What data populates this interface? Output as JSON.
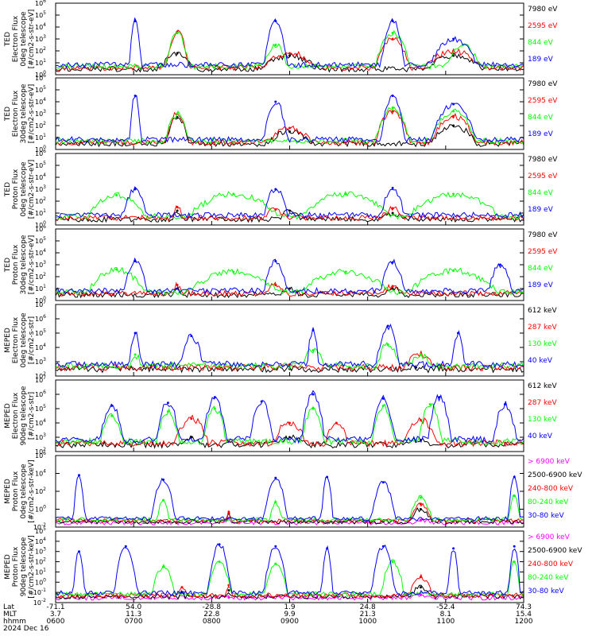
{
  "colors": {
    "black": "#000000",
    "red": "#ff0000",
    "green": "#00ff00",
    "blue": "#0000ff",
    "magenta": "#ff00ff"
  },
  "bottom_axis": {
    "row_labels": [
      "Lat",
      "MLT",
      "hhmm",
      "2024 Dec 16"
    ],
    "ticks": [
      {
        "lat": "-71.1",
        "mlt": "3.7",
        "hhmm": "0600"
      },
      {
        "lat": "54.0",
        "mlt": "11.3",
        "hhmm": "0700"
      },
      {
        "lat": "-28.8",
        "mlt": "22.8",
        "hhmm": "0800"
      },
      {
        "lat": "1.9",
        "mlt": "9.9",
        "hhmm": "0900"
      },
      {
        "lat": "24.8",
        "mlt": "21.3",
        "hhmm": "1000"
      },
      {
        "lat": "-52.4",
        "mlt": "8.1",
        "hhmm": "1100"
      },
      {
        "lat": "74.3",
        "mlt": "15.4",
        "hhmm": "1200"
      }
    ]
  },
  "chart_data": [
    {
      "type": "line",
      "ylabel_lines": [
        "TED",
        "Electron Flux",
        "0deg telescope",
        "[#/cm2-s-str-eV]"
      ],
      "yscale": "log",
      "y_exponents": [
        0,
        1,
        2,
        3,
        4,
        5,
        6
      ],
      "series": [
        {
          "name": "7980 eV",
          "color": "black",
          "peaks": [
            [
              0.26,
              1.8,
              0.03
            ],
            [
              0.5,
              1.6,
              0.05
            ],
            [
              0.85,
              1.6,
              0.05
            ]
          ]
        },
        {
          "name": "2595 eV",
          "color": "red",
          "peaks": [
            [
              0.26,
              3.6,
              0.02
            ],
            [
              0.5,
              1.8,
              0.05
            ],
            [
              0.72,
              3.0,
              0.03
            ],
            [
              0.85,
              2.0,
              0.05
            ]
          ]
        },
        {
          "name": "844 eV",
          "color": "green",
          "peaks": [
            [
              0.26,
              3.5,
              0.02
            ],
            [
              0.47,
              2.5,
              0.02
            ],
            [
              0.72,
              3.5,
              0.03
            ],
            [
              0.87,
              2.5,
              0.03
            ]
          ]
        },
        {
          "name": "189 eV",
          "color": "blue",
          "peaks": [
            [
              0.17,
              4.5,
              0.01
            ],
            [
              0.47,
              4.5,
              0.02
            ],
            [
              0.72,
              4.5,
              0.02
            ],
            [
              0.85,
              3.0,
              0.04
            ]
          ]
        }
      ]
    },
    {
      "type": "line",
      "ylabel_lines": [
        "TED",
        "Electron Flux",
        "30deg telescope",
        "[#/cm2-s-str-eV]"
      ],
      "yscale": "log",
      "y_exponents": [
        0,
        1,
        2,
        3,
        4,
        5,
        6
      ],
      "series": [
        {
          "name": "7980 eV",
          "color": "black",
          "peaks": [
            [
              0.26,
              2.7,
              0.02
            ],
            [
              0.5,
              1.5,
              0.04
            ],
            [
              0.85,
              2.0,
              0.04
            ]
          ]
        },
        {
          "name": "2595 eV",
          "color": "red",
          "peaks": [
            [
              0.26,
              3.0,
              0.02
            ],
            [
              0.5,
              1.8,
              0.04
            ],
            [
              0.72,
              3.2,
              0.03
            ],
            [
              0.85,
              2.8,
              0.04
            ]
          ]
        },
        {
          "name": "844 eV",
          "color": "green",
          "peaks": [
            [
              0.26,
              3.0,
              0.02
            ],
            [
              0.72,
              3.5,
              0.03
            ],
            [
              0.85,
              3.2,
              0.04
            ]
          ]
        },
        {
          "name": "189 eV",
          "color": "blue",
          "peaks": [
            [
              0.17,
              4.5,
              0.01
            ],
            [
              0.47,
              4.0,
              0.02
            ],
            [
              0.72,
              4.5,
              0.02
            ],
            [
              0.85,
              3.8,
              0.04
            ]
          ]
        }
      ]
    },
    {
      "type": "line",
      "ylabel_lines": [
        "TED",
        "Proton Flux",
        "0deg telescope",
        "[#/cm2-s-str-eV]"
      ],
      "yscale": "log",
      "y_exponents": [
        0,
        1,
        2,
        3,
        4,
        5,
        6
      ],
      "series": [
        {
          "name": "7980 eV",
          "color": "black",
          "peaks": [
            [
              0.26,
              1.2,
              0.01
            ],
            [
              0.5,
              1.2,
              0.02
            ],
            [
              0.72,
              1.0,
              0.02
            ]
          ]
        },
        {
          "name": "2595 eV",
          "color": "red",
          "peaks": [
            [
              0.26,
              1.5,
              0.01
            ],
            [
              0.47,
              1.3,
              0.02
            ],
            [
              0.72,
              1.4,
              0.02
            ]
          ]
        },
        {
          "name": "844 eV",
          "color": "green",
          "peaks": [
            [
              0.13,
              2.5,
              0.05
            ],
            [
              0.38,
              2.6,
              0.08
            ],
            [
              0.62,
              2.6,
              0.08
            ],
            [
              0.85,
              2.6,
              0.08
            ]
          ]
        },
        {
          "name": "189 eV",
          "color": "blue",
          "peaks": [
            [
              0.17,
              3.0,
              0.02
            ],
            [
              0.47,
              3.0,
              0.02
            ],
            [
              0.72,
              3.1,
              0.02
            ]
          ]
        }
      ]
    },
    {
      "type": "line",
      "ylabel_lines": [
        "TED",
        "Proton Flux",
        "30deg telescope",
        "[#/cm2-s-str-eV]"
      ],
      "yscale": "log",
      "y_exponents": [
        0,
        1,
        2,
        3,
        4,
        5,
        6
      ],
      "series": [
        {
          "name": "7980 eV",
          "color": "black",
          "peaks": [
            [
              0.26,
              1.0,
              0.01
            ],
            [
              0.5,
              1.0,
              0.02
            ],
            [
              0.72,
              1.0,
              0.02
            ]
          ]
        },
        {
          "name": "2595 eV",
          "color": "red",
          "peaks": [
            [
              0.26,
              1.3,
              0.01
            ],
            [
              0.47,
              1.3,
              0.02
            ],
            [
              0.72,
              1.2,
              0.02
            ]
          ]
        },
        {
          "name": "844 eV",
          "color": "green",
          "peaks": [
            [
              0.13,
              2.6,
              0.05
            ],
            [
              0.38,
              2.4,
              0.08
            ],
            [
              0.62,
              2.4,
              0.08
            ],
            [
              0.85,
              2.5,
              0.08
            ]
          ]
        },
        {
          "name": "189 eV",
          "color": "blue",
          "peaks": [
            [
              0.17,
              3.3,
              0.02
            ],
            [
              0.47,
              3.3,
              0.02
            ],
            [
              0.72,
              3.2,
              0.02
            ],
            [
              0.95,
              3.0,
              0.02
            ]
          ]
        }
      ]
    },
    {
      "type": "line",
      "ylabel_lines": [
        "MEPED",
        "Electron Flux",
        "0deg telescope",
        "[#/cm2-s-str]"
      ],
      "yscale": "log",
      "y_exponents": [
        2,
        3,
        4,
        5,
        6,
        7
      ],
      "series": [
        {
          "name": "612 keV",
          "color": "black",
          "peaks": [
            [
              0.5,
              2.5,
              0.02
            ],
            [
              0.77,
              2.6,
              0.02
            ]
          ]
        },
        {
          "name": "287 keV",
          "color": "red",
          "peaks": [
            [
              0.5,
              2.8,
              0.02
            ],
            [
              0.78,
              3.5,
              0.03
            ]
          ]
        },
        {
          "name": "130 keV",
          "color": "green",
          "peaks": [
            [
              0.17,
              3.5,
              0.01
            ],
            [
              0.55,
              3.8,
              0.02
            ],
            [
              0.71,
              4.2,
              0.02
            ],
            [
              0.78,
              3.5,
              0.02
            ]
          ]
        },
        {
          "name": "40 keV",
          "color": "blue",
          "peaks": [
            [
              0.17,
              5.0,
              0.01
            ],
            [
              0.29,
              4.8,
              0.02
            ],
            [
              0.55,
              5.2,
              0.01
            ],
            [
              0.71,
              5.5,
              0.02
            ],
            [
              0.86,
              5.0,
              0.01
            ]
          ]
        }
      ]
    },
    {
      "type": "line",
      "ylabel_lines": [
        "MEPED",
        "Electron Flux",
        "90deg telescope",
        "[#/cm2-s-str]"
      ],
      "yscale": "log",
      "y_exponents": [
        2,
        3,
        4,
        5,
        6,
        7
      ],
      "series": [
        {
          "name": "612 keV",
          "color": "black",
          "peaks": [
            [
              0.29,
              3.0,
              0.02
            ],
            [
              0.5,
              3.0,
              0.03
            ],
            [
              0.78,
              2.8,
              0.03
            ]
          ]
        },
        {
          "name": "287 keV",
          "color": "red",
          "peaks": [
            [
              0.29,
              4.3,
              0.03
            ],
            [
              0.5,
              4.0,
              0.03
            ],
            [
              0.6,
              4.0,
              0.02
            ],
            [
              0.78,
              4.2,
              0.03
            ]
          ]
        },
        {
          "name": "130 keV",
          "color": "green",
          "peaks": [
            [
              0.12,
              4.5,
              0.02
            ],
            [
              0.24,
              4.8,
              0.02
            ],
            [
              0.34,
              5.0,
              0.02
            ],
            [
              0.55,
              5.0,
              0.02
            ],
            [
              0.7,
              5.2,
              0.02
            ],
            [
              0.8,
              5.3,
              0.02
            ]
          ]
        },
        {
          "name": "40 keV",
          "color": "blue",
          "peaks": [
            [
              0.12,
              5.2,
              0.02
            ],
            [
              0.24,
              5.4,
              0.02
            ],
            [
              0.34,
              5.8,
              0.02
            ],
            [
              0.44,
              5.5,
              0.02
            ],
            [
              0.55,
              6.0,
              0.02
            ],
            [
              0.7,
              5.7,
              0.02
            ],
            [
              0.82,
              5.8,
              0.02
            ],
            [
              0.96,
              5.3,
              0.02
            ]
          ]
        }
      ]
    },
    {
      "type": "line",
      "ylabel_lines": [
        "MEPED",
        "Proton Flux",
        "0deg telescope",
        "[#/cm2-s-str-keV]"
      ],
      "yscale": "log",
      "y_exponents": [
        -2,
        0,
        2,
        4,
        6
      ],
      "series": [
        {
          "name": "> 6900 keV",
          "color": "magenta",
          "peaks": [
            [
              0.37,
              -1.0,
              0.005
            ],
            [
              0.78,
              -1.2,
              0.02
            ]
          ]
        },
        {
          "name": "2500-6900 keV",
          "color": "black",
          "peaks": [
            [
              0.37,
              -0.5,
              0.005
            ],
            [
              0.78,
              0.0,
              0.02
            ]
          ]
        },
        {
          "name": "240-800 keV",
          "color": "red",
          "peaks": [
            [
              0.37,
              -0.3,
              0.005
            ],
            [
              0.78,
              0.6,
              0.02
            ]
          ]
        },
        {
          "name": "80-240 keV",
          "color": "green",
          "peaks": [
            [
              0.23,
              1.0,
              0.01
            ],
            [
              0.47,
              0.8,
              0.01
            ],
            [
              0.78,
              1.3,
              0.02
            ],
            [
              0.98,
              1.5,
              0.01
            ]
          ]
        },
        {
          "name": "30-80 keV",
          "color": "blue",
          "peaks": [
            [
              0.05,
              3.8,
              0.01
            ],
            [
              0.23,
              3.3,
              0.02
            ],
            [
              0.47,
              3.5,
              0.02
            ],
            [
              0.58,
              3.6,
              0.01
            ],
            [
              0.7,
              3.0,
              0.02
            ],
            [
              0.98,
              3.6,
              0.01
            ]
          ]
        }
      ]
    },
    {
      "type": "line",
      "ylabel_lines": [
        "MEPED",
        "Proton Flux",
        "90deg telescope",
        "[#/cm2-s-str-keV]"
      ],
      "yscale": "log",
      "y_exponents": [
        -2,
        -1,
        0,
        1,
        2,
        3,
        4,
        5
      ],
      "series": [
        {
          "name": "> 6900 keV",
          "color": "magenta",
          "peaks": [
            [
              0.37,
              -1.5,
              0.005
            ],
            [
              0.78,
              -1.2,
              0.02
            ]
          ]
        },
        {
          "name": "2500-6900 keV",
          "color": "black",
          "peaks": [
            [
              0.27,
              -1.0,
              0.005
            ],
            [
              0.37,
              -0.8,
              0.005
            ],
            [
              0.78,
              -0.5,
              0.02
            ]
          ]
        },
        {
          "name": "240-800 keV",
          "color": "red",
          "peaks": [
            [
              0.27,
              -0.5,
              0.01
            ],
            [
              0.37,
              -0.3,
              0.005
            ],
            [
              0.78,
              0.5,
              0.02
            ]
          ]
        },
        {
          "name": "80-240 keV",
          "color": "green",
          "peaks": [
            [
              0.23,
              1.5,
              0.02
            ],
            [
              0.35,
              2.0,
              0.02
            ],
            [
              0.47,
              1.8,
              0.02
            ],
            [
              0.72,
              2.0,
              0.02
            ],
            [
              0.98,
              2.0,
              0.01
            ]
          ]
        },
        {
          "name": "30-80 keV",
          "color": "blue",
          "peaks": [
            [
              0.05,
              3.0,
              0.01
            ],
            [
              0.15,
              3.5,
              0.02
            ],
            [
              0.35,
              3.7,
              0.02
            ],
            [
              0.47,
              3.5,
              0.02
            ],
            [
              0.58,
              3.3,
              0.01
            ],
            [
              0.7,
              3.5,
              0.02
            ],
            [
              0.85,
              3.3,
              0.01
            ],
            [
              0.98,
              3.5,
              0.01
            ]
          ]
        }
      ]
    }
  ]
}
